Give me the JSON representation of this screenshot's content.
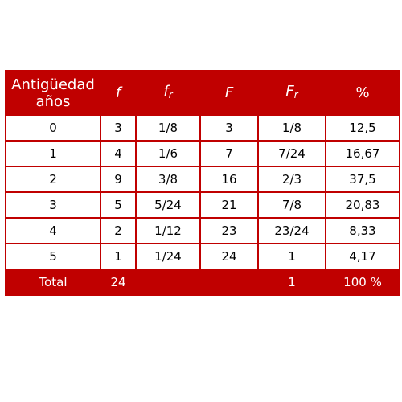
{
  "table": {
    "headers": {
      "col0": "Antigüedad años",
      "col1_main": "f",
      "col2_main": "f",
      "col2_sub": "r",
      "col3_main": "F",
      "col4_main": "F",
      "col4_sub": "r",
      "col5": "%"
    },
    "rows": [
      [
        "0",
        "3",
        "1/8",
        "3",
        "1/8",
        "12,5"
      ],
      [
        "1",
        "4",
        "1/6",
        "7",
        "7/24",
        "16,67"
      ],
      [
        "2",
        "9",
        "3/8",
        "16",
        "2/3",
        "37,5"
      ],
      [
        "3",
        "5",
        "5/24",
        "21",
        "7/8",
        "20,83"
      ],
      [
        "4",
        "2",
        "1/12",
        "23",
        "23/24",
        "8,33"
      ],
      [
        "5",
        "1",
        "1/24",
        "24",
        "1",
        "4,17"
      ]
    ],
    "total": [
      "Total",
      "24",
      "",
      "",
      "1",
      "100 %"
    ]
  }
}
